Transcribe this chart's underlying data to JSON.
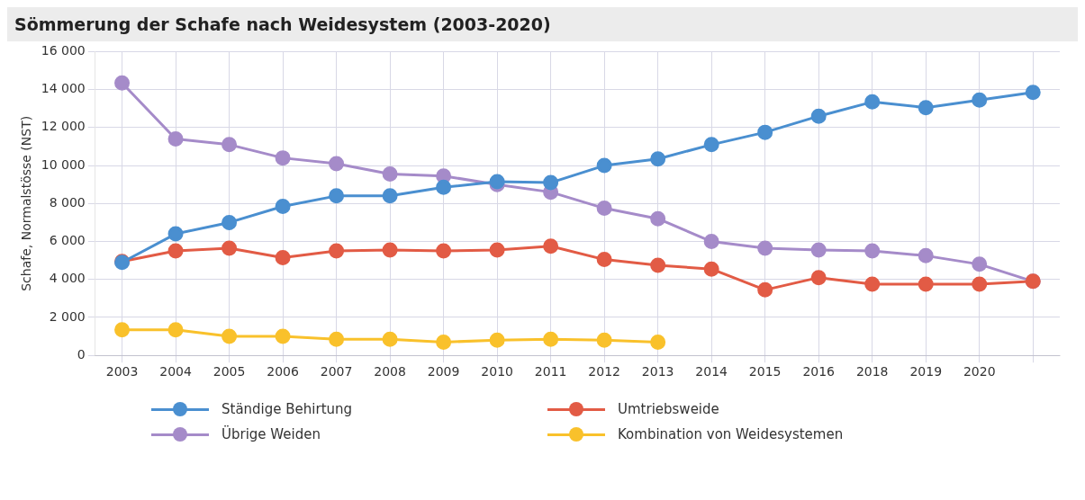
{
  "chart_data": {
    "type": "line",
    "title": "Sömmerung der Schafe nach Weidesystem (2003-2020)",
    "ylabel": "Schafe, Normalstösse (NST)",
    "categories": [
      "2003",
      "2004",
      "2005",
      "2006",
      "2007",
      "2008",
      "2009",
      "2010",
      "2011",
      "2012",
      "2013",
      "2014",
      "2015",
      "2016",
      "2018",
      "2019",
      "2020",
      null
    ],
    "series": [
      {
        "name": "Ständige Behirtung",
        "color": "#4a8fd0",
        "values": [
          4900,
          6400,
          7000,
          7850,
          8400,
          8400,
          8850,
          9150,
          9100,
          10000,
          10350,
          11100,
          11750,
          12600,
          13350,
          13050,
          13450,
          13850
        ]
      },
      {
        "name": "Umtriebsweide",
        "color": "#e25b45",
        "values": [
          4950,
          5500,
          5650,
          5150,
          5500,
          5550,
          5500,
          5550,
          5750,
          5050,
          4750,
          4550,
          3450,
          4100,
          3750,
          3750,
          3750,
          3900
        ]
      },
      {
        "name": "Übrige Weiden",
        "color": "#a58bc9",
        "values": [
          14350,
          11400,
          11100,
          10400,
          10100,
          9550,
          9450,
          9000,
          8600,
          7750,
          7200,
          6000,
          5650,
          5550,
          5500,
          5250,
          4800,
          3900
        ]
      },
      {
        "name": "Kombination von Weidesystemen",
        "color": "#f9c12b",
        "values": [
          1350,
          1350,
          1000,
          1000,
          850,
          850,
          700,
          800,
          850,
          800,
          700,
          null,
          null,
          null,
          null,
          null,
          null,
          null
        ]
      }
    ],
    "ylim": [
      0,
      16000
    ],
    "yticks": [
      0,
      {
        "value": 2000,
        "label": "2 000"
      },
      {
        "value": 4000,
        "label": "4 000"
      },
      {
        "value": 6000,
        "label": "6 000"
      },
      {
        "value": 8000,
        "label": "8 000"
      },
      {
        "value": 10000,
        "label": "10 000"
      },
      {
        "value": 12000,
        "label": "12 000"
      },
      {
        "value": 14000,
        "label": "14 000"
      },
      {
        "value": 16000,
        "label": "16 000"
      }
    ],
    "grid": true,
    "legend": "bottom",
    "marker": "circle",
    "line_style": "solid"
  }
}
